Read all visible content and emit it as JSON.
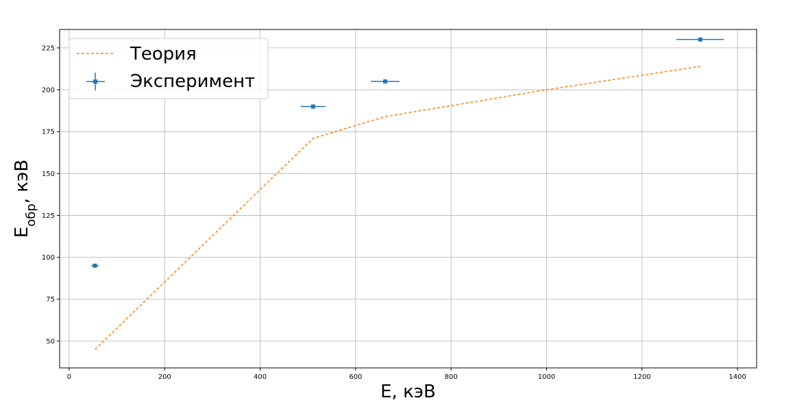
{
  "chart_data": {
    "type": "scatter",
    "xlabel": "E, кэВ",
    "ylabel": "E_обр, кэВ",
    "xlim": [
      -20,
      1440
    ],
    "ylim": [
      34,
      236
    ],
    "xticks": [
      0,
      200,
      400,
      600,
      800,
      1000,
      1200,
      1400
    ],
    "yticks": [
      50,
      75,
      100,
      125,
      150,
      175,
      200,
      225
    ],
    "grid": true,
    "legend_position": "top-left",
    "series": [
      {
        "name": "Теория",
        "kind": "line",
        "style": "dashed",
        "color": "#ff7f0e",
        "x": [
          54,
          511,
          662,
          1000,
          1322
        ],
        "y": [
          45,
          171,
          184,
          200,
          214
        ]
      },
      {
        "name": "Эксперимент",
        "kind": "errorbar",
        "color": "#1f77b4",
        "x": [
          54,
          511,
          662,
          1322
        ],
        "y": [
          95,
          190,
          205,
          230
        ],
        "xerr": [
          8,
          26,
          30,
          50
        ],
        "yerr": [
          1,
          0.5,
          0.5,
          0.5
        ]
      }
    ]
  }
}
